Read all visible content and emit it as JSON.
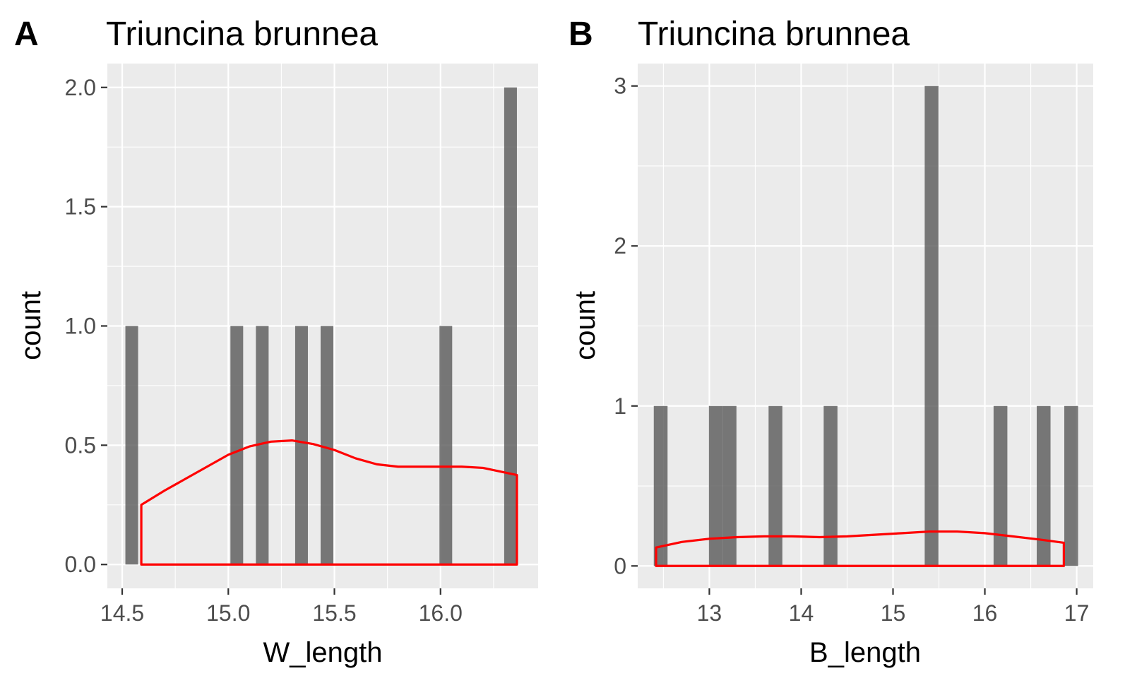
{
  "chart_data": [
    {
      "panel": "A",
      "type": "bar",
      "title": "Triuncina brunnea",
      "xlabel": "W_length",
      "ylabel": "count",
      "xlim": [
        14.43,
        16.46
      ],
      "ylim": [
        -0.1,
        2.1
      ],
      "x_ticks": [
        "14.5",
        "15.0",
        "15.5",
        "16.0"
      ],
      "x_tick_values": [
        14.5,
        15.0,
        15.5,
        16.0
      ],
      "x_minor_values": [
        14.75,
        15.25,
        15.75,
        16.25
      ],
      "y_ticks": [
        "0.0",
        "0.5",
        "1.0",
        "1.5",
        "2.0"
      ],
      "y_tick_values": [
        0,
        0.5,
        1.0,
        1.5,
        2.0
      ],
      "y_minor_values": [
        0.25,
        0.75,
        1.25,
        1.75
      ],
      "bar_width": 0.06,
      "bars": [
        {
          "x": 14.545,
          "count": 1
        },
        {
          "x": 15.04,
          "count": 1
        },
        {
          "x": 15.16,
          "count": 1
        },
        {
          "x": 15.345,
          "count": 1
        },
        {
          "x": 15.465,
          "count": 1
        },
        {
          "x": 16.025,
          "count": 1
        },
        {
          "x": 16.33,
          "count": 2
        }
      ],
      "bar_color": "#595959",
      "density_color": "#ff0000",
      "density": {
        "x": [
          14.59,
          14.7,
          14.8,
          14.9,
          15.0,
          15.1,
          15.2,
          15.3,
          15.4,
          15.5,
          15.6,
          15.7,
          15.8,
          15.9,
          16.0,
          16.1,
          16.2,
          16.36
        ],
        "y": [
          0.25,
          0.31,
          0.36,
          0.41,
          0.46,
          0.495,
          0.515,
          0.52,
          0.505,
          0.48,
          0.445,
          0.42,
          0.41,
          0.41,
          0.41,
          0.41,
          0.405,
          0.375
        ]
      }
    },
    {
      "panel": "B",
      "type": "bar",
      "title": "Triuncina brunnea",
      "xlabel": "B_length",
      "ylabel": "count",
      "xlim": [
        12.22,
        17.18
      ],
      "ylim": [
        -0.14,
        3.14
      ],
      "x_ticks": [
        "13",
        "14",
        "15",
        "16",
        "17"
      ],
      "x_tick_values": [
        13,
        14,
        15,
        16,
        17
      ],
      "x_minor_values": [
        12.5,
        13.5,
        14.5,
        15.5,
        16.5
      ],
      "y_ticks": [
        "0",
        "1",
        "2",
        "3"
      ],
      "y_tick_values": [
        0,
        1,
        2,
        3
      ],
      "y_minor_values": [
        0.5,
        1.5,
        2.5
      ],
      "bar_width": 0.15,
      "bars": [
        {
          "x": 12.47,
          "count": 1
        },
        {
          "x": 13.07,
          "count": 1
        },
        {
          "x": 13.22,
          "count": 1
        },
        {
          "x": 13.72,
          "count": 1
        },
        {
          "x": 14.32,
          "count": 1
        },
        {
          "x": 15.42,
          "count": 3
        },
        {
          "x": 16.17,
          "count": 1
        },
        {
          "x": 16.64,
          "count": 1
        },
        {
          "x": 16.94,
          "count": 1
        }
      ],
      "bar_color": "#595959",
      "density_color": "#ff0000",
      "density": {
        "x": [
          12.42,
          12.7,
          13.0,
          13.3,
          13.6,
          13.9,
          14.2,
          14.5,
          14.8,
          15.1,
          15.4,
          15.7,
          16.0,
          16.3,
          16.6,
          16.86
        ],
        "y": [
          0.115,
          0.15,
          0.17,
          0.18,
          0.185,
          0.185,
          0.18,
          0.185,
          0.195,
          0.205,
          0.215,
          0.215,
          0.205,
          0.185,
          0.165,
          0.145
        ]
      }
    }
  ]
}
